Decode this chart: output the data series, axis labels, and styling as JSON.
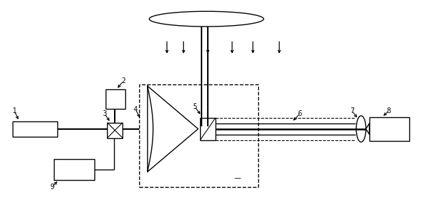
{
  "bg_color": "#ffffff",
  "fig_width": 6.06,
  "fig_height": 3.11,
  "dpi": 100
}
